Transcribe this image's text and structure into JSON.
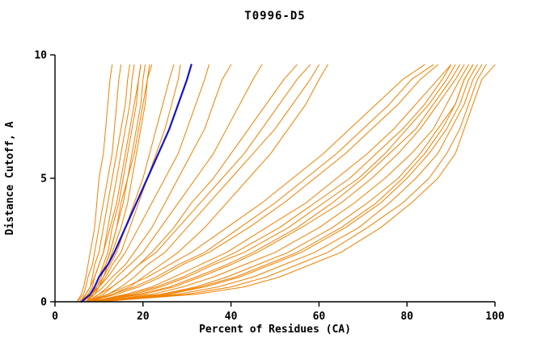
{
  "title": "T0996-D5",
  "colors": {
    "orange": "#f08000",
    "blue": "#1414c8",
    "axis": "#000000",
    "background": "#ffffff"
  },
  "chart_data": {
    "type": "line",
    "title": "T0996-D5",
    "xlabel": "Percent of Residues (CA)",
    "ylabel": "Distance Cutoff, A",
    "xlim": [
      0,
      100
    ],
    "ylim": [
      0,
      10
    ],
    "x_ticks": [
      0,
      20,
      40,
      60,
      80,
      100
    ],
    "y_ticks": [
      0,
      5,
      10
    ],
    "grid": false,
    "legend": "none",
    "y_levels": [
      0,
      0.3,
      0.6,
      1,
      1.5,
      2,
      3,
      4,
      5,
      6,
      7,
      8,
      9,
      9.6
    ],
    "series": [
      {
        "id": "orange-01",
        "color": "orange",
        "width": 1,
        "x": [
          5,
          6,
          6.5,
          7,
          7.5,
          8,
          9,
          9.5,
          10,
          11,
          11.5,
          12,
          12.5,
          13
        ]
      },
      {
        "id": "orange-02",
        "color": "orange",
        "width": 1,
        "x": [
          5,
          6.5,
          7,
          7.5,
          8.5,
          9,
          10,
          11,
          12,
          13,
          13.5,
          14,
          14.5,
          15
        ]
      },
      {
        "id": "orange-03",
        "color": "orange",
        "width": 1,
        "x": [
          6,
          7,
          8,
          8.5,
          9,
          10,
          11,
          12,
          13,
          14,
          15,
          16,
          16.5,
          17
        ]
      },
      {
        "id": "orange-04",
        "color": "orange",
        "width": 1,
        "x": [
          6,
          7.5,
          8.5,
          9,
          10,
          11,
          12,
          13,
          14,
          15,
          16,
          17,
          17.5,
          18
        ]
      },
      {
        "id": "orange-05",
        "color": "orange",
        "width": 1,
        "x": [
          6,
          8,
          9,
          10,
          11,
          12,
          13,
          14.5,
          15.5,
          16.5,
          17.5,
          18.5,
          19,
          19.5
        ]
      },
      {
        "id": "orange-06",
        "color": "orange",
        "width": 1,
        "x": [
          7,
          8.5,
          9.5,
          10.5,
          11.5,
          12.5,
          14,
          15.5,
          16.5,
          17.5,
          18.5,
          19.5,
          20,
          20.5
        ]
      },
      {
        "id": "orange-07",
        "color": "orange",
        "width": 1,
        "x": [
          7,
          9,
          10,
          11,
          12,
          13,
          15,
          16.5,
          17.5,
          18.5,
          19.5,
          20.5,
          21,
          21.5
        ]
      },
      {
        "id": "orange-08",
        "color": "orange",
        "width": 1,
        "x": [
          5.5,
          7,
          8,
          9,
          10,
          11,
          12.5,
          14,
          15,
          16,
          17,
          18,
          19,
          19.5
        ]
      },
      {
        "id": "orange-09",
        "color": "orange",
        "width": 1,
        "x": [
          6.5,
          8,
          9,
          10,
          11.5,
          12.5,
          14,
          15,
          16.5,
          18,
          19,
          20,
          21,
          22
        ]
      },
      {
        "id": "orange-10",
        "color": "orange",
        "width": 1,
        "x": [
          6,
          8,
          9.5,
          11,
          12.5,
          14,
          16,
          18,
          20,
          21.5,
          23,
          24.5,
          26,
          27
        ]
      },
      {
        "id": "orange-11",
        "color": "orange",
        "width": 1,
        "x": [
          6,
          8.5,
          10,
          11.5,
          13,
          15,
          17,
          19,
          21,
          23,
          25,
          26.5,
          28,
          28.5
        ]
      },
      {
        "id": "orange-12",
        "color": "orange",
        "width": 1,
        "x": [
          6,
          8,
          10,
          12,
          14,
          16,
          19,
          22,
          25,
          28,
          30,
          32,
          34,
          35
        ]
      },
      {
        "id": "orange-13",
        "color": "orange",
        "width": 1,
        "x": [
          6,
          9,
          11,
          13,
          16,
          18,
          22,
          25,
          28,
          31,
          34,
          36,
          38,
          40
        ]
      },
      {
        "id": "orange-14",
        "color": "orange",
        "width": 1,
        "x": [
          7,
          10,
          12,
          14,
          17,
          20,
          24,
          28,
          32,
          36,
          39,
          42,
          45,
          47
        ]
      },
      {
        "id": "orange-15",
        "color": "orange",
        "width": 1,
        "x": [
          7,
          11,
          13,
          16,
          19,
          22,
          27,
          31,
          36,
          40,
          44,
          48,
          52,
          55
        ]
      },
      {
        "id": "orange-16",
        "color": "orange",
        "width": 1,
        "x": [
          7,
          12,
          15,
          18,
          21,
          25,
          30,
          35,
          40,
          45,
          50,
          54,
          58,
          60
        ]
      },
      {
        "id": "orange-17",
        "color": "orange",
        "width": 1,
        "x": [
          8,
          13,
          17,
          20,
          24,
          28,
          34,
          39,
          44,
          49,
          53,
          57,
          60,
          62
        ]
      },
      {
        "id": "orange-18",
        "color": "orange",
        "width": 1,
        "x": [
          7,
          10,
          13,
          16,
          19,
          23,
          28,
          33,
          38,
          43,
          47,
          51,
          55,
          58
        ]
      },
      {
        "id": "orange-19",
        "color": "orange",
        "width": 1,
        "x": [
          7,
          12,
          16,
          21,
          26,
          31,
          39,
          47,
          54,
          61,
          67,
          73,
          79,
          84
        ]
      },
      {
        "id": "orange-20",
        "color": "orange",
        "width": 1,
        "x": [
          7,
          14,
          19,
          24,
          29,
          35,
          44,
          52,
          59,
          66,
          72,
          78,
          83,
          87
        ]
      },
      {
        "id": "orange-21",
        "color": "orange",
        "width": 1,
        "x": [
          8,
          16,
          22,
          27,
          33,
          39,
          48,
          57,
          64,
          71,
          77,
          82,
          87,
          90
        ]
      },
      {
        "id": "orange-22",
        "color": "orange",
        "width": 1,
        "x": [
          8,
          18,
          24,
          30,
          36,
          43,
          53,
          61,
          69,
          75,
          80,
          85,
          89,
          91
        ]
      },
      {
        "id": "orange-23",
        "color": "orange",
        "width": 1,
        "x": [
          8,
          20,
          27,
          33,
          40,
          46,
          56,
          65,
          72,
          78,
          83,
          87,
          91,
          93
        ]
      },
      {
        "id": "orange-24",
        "color": "orange",
        "width": 1,
        "x": [
          9,
          22,
          29,
          36,
          43,
          50,
          60,
          68,
          75,
          81,
          86,
          89,
          92,
          94
        ]
      },
      {
        "id": "orange-25",
        "color": "orange",
        "width": 1,
        "x": [
          9,
          24,
          32,
          39,
          46,
          53,
          63,
          71,
          78,
          83,
          87,
          91,
          93,
          95
        ]
      },
      {
        "id": "orange-26",
        "color": "orange",
        "width": 1,
        "x": [
          9,
          26,
          34,
          42,
          49,
          56,
          66,
          74,
          80,
          85,
          89,
          92,
          94,
          96
        ]
      },
      {
        "id": "orange-27",
        "color": "orange",
        "width": 1,
        "x": [
          10,
          28,
          37,
          45,
          52,
          59,
          69,
          76,
          82,
          87,
          90,
          93,
          95,
          97
        ]
      },
      {
        "id": "orange-28",
        "color": "orange",
        "width": 1,
        "x": [
          10,
          30,
          40,
          48,
          55,
          62,
          71,
          79,
          85,
          89,
          92,
          94,
          96,
          98
        ]
      },
      {
        "id": "orange-29",
        "color": "orange",
        "width": 1,
        "x": [
          10,
          32,
          43,
          51,
          58,
          65,
          74,
          81,
          87,
          91,
          93,
          95,
          97,
          100
        ]
      },
      {
        "id": "orange-30",
        "color": "orange",
        "width": 1,
        "x": [
          8,
          17,
          23,
          29,
          35,
          41,
          51,
          59,
          67,
          73,
          79,
          84,
          88,
          90
        ]
      },
      {
        "id": "orange-31",
        "color": "orange",
        "width": 1,
        "x": [
          9,
          19,
          26,
          32,
          39,
          45,
          55,
          63,
          70,
          76,
          82,
          86,
          90,
          92
        ]
      },
      {
        "id": "orange-32",
        "color": "orange",
        "width": 1,
        "x": [
          9,
          25,
          33,
          41,
          48,
          55,
          65,
          73,
          79,
          84,
          88,
          91,
          93,
          95
        ]
      },
      {
        "id": "orange-33",
        "color": "orange",
        "width": 1,
        "x": [
          7,
          13,
          18,
          23,
          28,
          34,
          42,
          50,
          57,
          64,
          70,
          76,
          81,
          86
        ]
      },
      {
        "id": "highlighted-model",
        "color": "blue",
        "width": 2.2,
        "x": [
          6,
          8,
          9,
          10,
          12,
          13.5,
          16,
          18.5,
          21,
          23.5,
          26,
          28,
          30,
          31
        ]
      }
    ]
  }
}
